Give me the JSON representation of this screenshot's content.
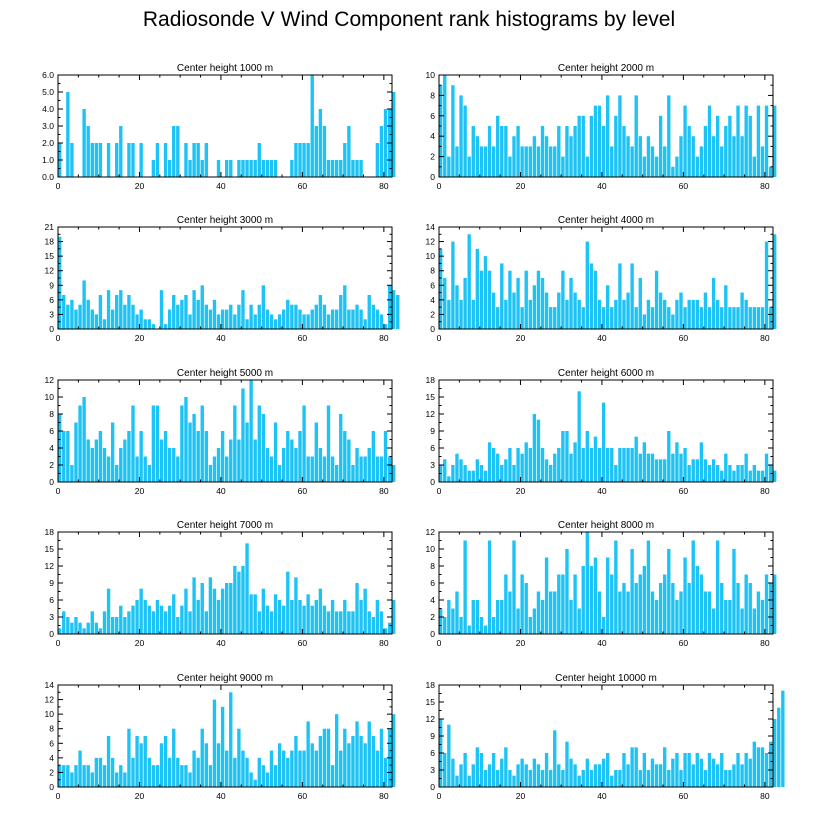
{
  "title": "Radiosonde V Wind Component rank histograms by level",
  "bar_color": "#1ec3f5",
  "axis_color": "#000000",
  "chart_data": [
    {
      "type": "bar",
      "title": "Center height 1000 m",
      "xlim": [
        0,
        82
      ],
      "ylim": [
        0,
        6
      ],
      "x_ticks": [
        0,
        20,
        40,
        60,
        80
      ],
      "y_ticks": [
        0,
        1,
        2,
        3,
        4,
        5,
        6
      ],
      "y_tick_labels": [
        "0.0",
        "1.0",
        "2.0",
        "3.0",
        "4.0",
        "5.0",
        "6.0"
      ],
      "values": [
        2,
        0,
        5,
        2,
        0,
        0,
        4,
        3,
        2,
        2,
        2,
        0,
        2,
        0,
        2,
        3,
        0,
        2,
        2,
        0,
        2,
        0,
        0,
        1,
        2,
        0,
        2,
        1,
        3,
        3,
        0,
        2,
        1,
        2,
        2,
        1,
        2,
        0,
        0,
        1,
        0,
        1,
        1,
        0,
        1,
        1,
        1,
        1,
        1,
        2,
        1,
        1,
        1,
        1,
        0,
        0,
        0,
        1,
        2,
        2,
        2,
        2,
        6,
        3,
        4,
        3,
        1,
        1,
        1,
        1,
        2,
        3,
        1,
        1,
        1,
        0,
        0,
        0,
        2,
        3,
        4,
        4,
        5
      ]
    },
    {
      "type": "bar",
      "title": "Center height 2000 m",
      "xlim": [
        0,
        82
      ],
      "ylim": [
        0,
        10
      ],
      "x_ticks": [
        0,
        20,
        40,
        60,
        80
      ],
      "y_ticks": [
        0,
        2,
        4,
        6,
        8,
        10
      ],
      "y_tick_labels": [
        "0",
        "2",
        "4",
        "6",
        "8",
        "10"
      ],
      "values": [
        9,
        10,
        2,
        9,
        3,
        8,
        7,
        2,
        5,
        4,
        3,
        3,
        5,
        3,
        6,
        5,
        5,
        2,
        4,
        5,
        3,
        3,
        3,
        4,
        3,
        5,
        4,
        3,
        3,
        5,
        2,
        5,
        4,
        5,
        6,
        6,
        2,
        6,
        7,
        7,
        5,
        8,
        3,
        6,
        8,
        5,
        4,
        3,
        8,
        4,
        2,
        4,
        3,
        2,
        6,
        3,
        8,
        1,
        2,
        4,
        7,
        5,
        4,
        2,
        3,
        5,
        7,
        4,
        6,
        3,
        5,
        6,
        4,
        7,
        4,
        7,
        6,
        2,
        7,
        3,
        7,
        1,
        7
      ]
    },
    {
      "type": "bar",
      "title": "Center height 3000 m",
      "xlim": [
        0,
        82
      ],
      "ylim": [
        0,
        21
      ],
      "x_ticks": [
        0,
        20,
        40,
        60,
        80
      ],
      "y_ticks": [
        0,
        3,
        6,
        9,
        12,
        15,
        18,
        21
      ],
      "y_tick_labels": [
        "0",
        "3",
        "6",
        "9",
        "12",
        "15",
        "18",
        "21"
      ],
      "values": [
        19,
        7,
        5,
        6,
        4,
        5,
        10,
        6,
        4,
        3,
        7,
        2,
        8,
        4,
        7,
        8,
        5,
        7,
        5,
        3,
        4,
        2,
        2,
        1,
        0,
        8,
        1,
        4,
        7,
        5,
        6,
        7,
        3,
        8,
        6,
        9,
        5,
        4,
        6,
        3,
        4,
        4,
        5,
        3,
        5,
        8,
        2,
        5,
        3,
        5,
        9,
        4,
        3,
        2,
        3,
        4,
        6,
        5,
        5,
        4,
        3,
        3,
        4,
        5,
        7,
        5,
        3,
        4,
        4,
        7,
        9,
        4,
        4,
        5,
        4,
        2,
        7,
        5,
        4,
        3,
        1,
        9,
        8,
        7
      ]
    },
    {
      "type": "bar",
      "title": "Center height 4000 m",
      "xlim": [
        0,
        82
      ],
      "ylim": [
        0,
        14
      ],
      "x_ticks": [
        0,
        20,
        40,
        60,
        80
      ],
      "y_ticks": [
        0,
        2,
        4,
        6,
        8,
        10,
        12,
        14
      ],
      "y_tick_labels": [
        "0",
        "2",
        "4",
        "6",
        "8",
        "10",
        "12",
        "14"
      ],
      "values": [
        11,
        7,
        4,
        12,
        6,
        4,
        7,
        13,
        4,
        11,
        8,
        10,
        8,
        5,
        3,
        9,
        4,
        8,
        5,
        7,
        3,
        8,
        4,
        6,
        8,
        7,
        5,
        3,
        3,
        5,
        8,
        4,
        7,
        5,
        4,
        3,
        12,
        9,
        8,
        4,
        3,
        6,
        3,
        4,
        9,
        4,
        5,
        9,
        3,
        7,
        2,
        4,
        3,
        8,
        5,
        4,
        3,
        2,
        4,
        5,
        3,
        4,
        4,
        4,
        3,
        5,
        3,
        7,
        4,
        3,
        6,
        3,
        3,
        3,
        5,
        4,
        3,
        3,
        3,
        3,
        12,
        3,
        13
      ]
    },
    {
      "type": "bar",
      "title": "Center height 5000 m",
      "xlim": [
        0,
        82
      ],
      "ylim": [
        0,
        12
      ],
      "x_ticks": [
        0,
        20,
        40,
        60,
        80
      ],
      "y_ticks": [
        0,
        2,
        4,
        6,
        8,
        10,
        12
      ],
      "y_tick_labels": [
        "0",
        "2",
        "4",
        "6",
        "8",
        "10",
        "12"
      ],
      "values": [
        8,
        6,
        6,
        2,
        7,
        9,
        10,
        5,
        4,
        5,
        6,
        4,
        3,
        7,
        2,
        4,
        5,
        6,
        9,
        3,
        6,
        3,
        2,
        9,
        9,
        5,
        6,
        4,
        4,
        3,
        9,
        10,
        7,
        8,
        6,
        9,
        6,
        2,
        3,
        4,
        6,
        3,
        5,
        9,
        5,
        11,
        7,
        12,
        5,
        9,
        8,
        4,
        3,
        7,
        2,
        4,
        6,
        5,
        4,
        6,
        9,
        3,
        3,
        7,
        4,
        3,
        9,
        3,
        2,
        8,
        6,
        5,
        2,
        4,
        3,
        3,
        4,
        6,
        3,
        3,
        6,
        3,
        2
      ]
    },
    {
      "type": "bar",
      "title": "Center height 6000 m",
      "xlim": [
        0,
        82
      ],
      "ylim": [
        0,
        18
      ],
      "x_ticks": [
        0,
        20,
        40,
        60,
        80
      ],
      "y_ticks": [
        0,
        3,
        6,
        9,
        12,
        15,
        18
      ],
      "y_tick_labels": [
        "0",
        "3",
        "6",
        "9",
        "12",
        "15",
        "18"
      ],
      "values": [
        3,
        4,
        1,
        3,
        5,
        4,
        3,
        2,
        2,
        4,
        3,
        2,
        7,
        6,
        5,
        3,
        4,
        6,
        3,
        6,
        5,
        7,
        6,
        12,
        11,
        6,
        4,
        3,
        5,
        6,
        9,
        9,
        5,
        7,
        16,
        6,
        9,
        6,
        8,
        6,
        14,
        6,
        6,
        3,
        6,
        6,
        6,
        6,
        8,
        5,
        7,
        5,
        5,
        4,
        4,
        4,
        9,
        5,
        7,
        5,
        6,
        3,
        4,
        4,
        7,
        4,
        3,
        4,
        3,
        2,
        5,
        3,
        2,
        3,
        3,
        5,
        2,
        3,
        2,
        2,
        5,
        3,
        2
      ]
    },
    {
      "type": "bar",
      "title": "Center height 7000 m",
      "xlim": [
        0,
        82
      ],
      "ylim": [
        0,
        18
      ],
      "x_ticks": [
        0,
        20,
        40,
        60,
        80
      ],
      "y_ticks": [
        0,
        3,
        6,
        9,
        12,
        15,
        18
      ],
      "y_tick_labels": [
        "0",
        "3",
        "6",
        "9",
        "12",
        "15",
        "18"
      ],
      "values": [
        1,
        4,
        3,
        2,
        3,
        2,
        1,
        2,
        4,
        2,
        1,
        4,
        8,
        3,
        3,
        5,
        3,
        4,
        5,
        6,
        8,
        6,
        5,
        4,
        6,
        5,
        4,
        5,
        7,
        3,
        5,
        8,
        4,
        10,
        6,
        9,
        4,
        10,
        8,
        6,
        8,
        9,
        9,
        12,
        11,
        12,
        16,
        7,
        7,
        4,
        8,
        5,
        4,
        7,
        6,
        5,
        11,
        6,
        10,
        6,
        5,
        7,
        5,
        6,
        8,
        5,
        4,
        6,
        4,
        4,
        6,
        4,
        4,
        9,
        6,
        8,
        4,
        3,
        6,
        4,
        1,
        2,
        6
      ]
    },
    {
      "type": "bar",
      "title": "Center height 8000 m",
      "xlim": [
        0,
        82
      ],
      "ylim": [
        0,
        12
      ],
      "x_ticks": [
        0,
        20,
        40,
        60,
        80
      ],
      "y_ticks": [
        0,
        2,
        4,
        6,
        8,
        10,
        12
      ],
      "y_tick_labels": [
        "0",
        "2",
        "4",
        "6",
        "8",
        "10",
        "12"
      ],
      "values": [
        3,
        2,
        4,
        3,
        5,
        2,
        11,
        1,
        4,
        4,
        2,
        1,
        11,
        2,
        4,
        4,
        7,
        5,
        11,
        3,
        7,
        6,
        2,
        3,
        5,
        4,
        9,
        5,
        5,
        7,
        7,
        10,
        4,
        7,
        3,
        8,
        12,
        8,
        9,
        5,
        2,
        9,
        7,
        11,
        5,
        6,
        5,
        10,
        6,
        7,
        8,
        11,
        5,
        4,
        6,
        7,
        10,
        6,
        4,
        5,
        9,
        6,
        11,
        8,
        7,
        5,
        5,
        3,
        11,
        6,
        4,
        4,
        10,
        6,
        3,
        7,
        6,
        3,
        5,
        4,
        7,
        6,
        7
      ]
    },
    {
      "type": "bar",
      "title": "Center height 9000 m",
      "xlim": [
        0,
        82
      ],
      "ylim": [
        0,
        14
      ],
      "x_ticks": [
        0,
        20,
        40,
        60,
        80
      ],
      "y_ticks": [
        0,
        2,
        4,
        6,
        8,
        10,
        12,
        14
      ],
      "y_tick_labels": [
        "0",
        "2",
        "4",
        "6",
        "8",
        "10",
        "12",
        "14"
      ],
      "values": [
        3,
        3,
        3,
        2,
        3,
        5,
        3,
        3,
        2,
        4,
        4,
        3,
        7,
        4,
        2,
        3,
        2,
        8,
        4,
        7,
        6,
        7,
        4,
        3,
        3,
        6,
        7,
        4,
        8,
        4,
        3,
        3,
        2,
        5,
        4,
        8,
        6,
        3,
        12,
        6,
        11,
        5,
        13,
        4,
        8,
        5,
        4,
        2,
        1,
        4,
        3,
        2,
        5,
        3,
        6,
        5,
        4,
        5,
        7,
        5,
        5,
        9,
        6,
        5,
        7,
        8,
        8,
        3,
        10,
        5,
        8,
        6,
        7,
        9,
        7,
        6,
        9,
        7,
        5,
        8,
        4,
        8,
        10
      ]
    },
    {
      "type": "bar",
      "title": "Center height 10000 m",
      "xlim": [
        0,
        82
      ],
      "ylim": [
        0,
        18
      ],
      "x_ticks": [
        0,
        20,
        40,
        60,
        80
      ],
      "y_ticks": [
        0,
        3,
        6,
        9,
        12,
        15,
        18
      ],
      "y_tick_labels": [
        "0",
        "3",
        "6",
        "9",
        "12",
        "15",
        "18"
      ],
      "values": [
        12,
        6,
        11,
        5,
        2,
        4,
        6,
        2,
        4,
        7,
        6,
        3,
        4,
        6,
        3,
        5,
        7,
        3,
        2,
        4,
        5,
        4,
        3,
        5,
        4,
        3,
        6,
        3,
        10,
        4,
        3,
        8,
        5,
        4,
        2,
        3,
        5,
        3,
        4,
        4,
        5,
        6,
        2,
        3,
        3,
        6,
        4,
        7,
        7,
        3,
        6,
        3,
        5,
        4,
        4,
        7,
        3,
        5,
        6,
        3,
        6,
        6,
        4,
        6,
        5,
        3,
        6,
        5,
        4,
        6,
        3,
        3,
        4,
        6,
        4,
        6,
        5,
        8,
        7,
        7,
        6,
        8,
        12,
        14,
        17
      ]
    }
  ]
}
